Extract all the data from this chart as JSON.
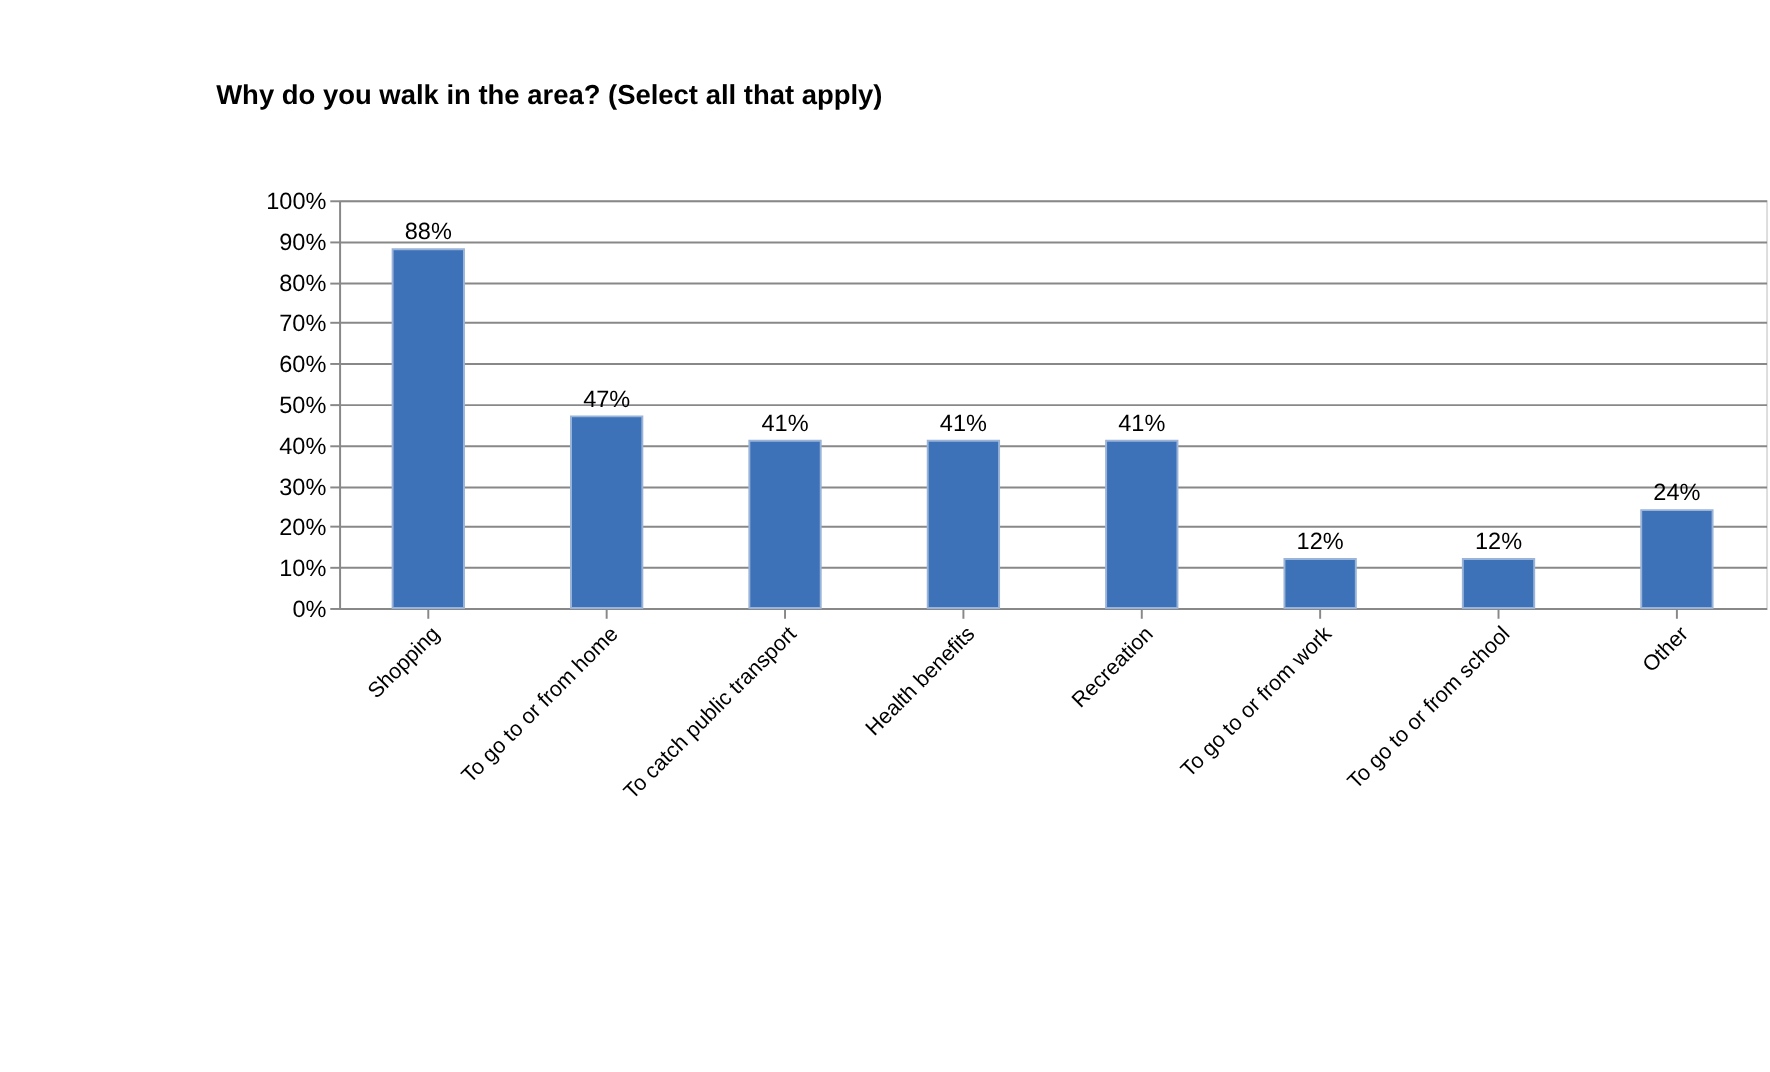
{
  "chart_data": {
    "type": "bar",
    "title": "Why do you walk in the area? (Select all that apply)",
    "categories": [
      "Shopping",
      "To go to or from home",
      "To catch public transport",
      "Health benefits",
      "Recreation",
      "To go to or from work",
      "To go to or from school",
      "Other"
    ],
    "values": [
      88,
      47,
      41,
      41,
      41,
      12,
      12,
      24
    ],
    "value_labels": [
      "88%",
      "47%",
      "41%",
      "41%",
      "41%",
      "12%",
      "12%",
      "24%"
    ],
    "color": "#3d72b8",
    "ylim": [
      0,
      100
    ],
    "yticks": [
      {
        "value": 0,
        "label": "0%"
      },
      {
        "value": 10,
        "label": "10%"
      },
      {
        "value": 20,
        "label": "20%"
      },
      {
        "value": 30,
        "label": "30%"
      },
      {
        "value": 40,
        "label": "40%"
      },
      {
        "value": 50,
        "label": "50%"
      },
      {
        "value": 60,
        "label": "60%"
      },
      {
        "value": 70,
        "label": "70%"
      },
      {
        "value": 80,
        "label": "80%"
      },
      {
        "value": 90,
        "label": "90%"
      },
      {
        "value": 100,
        "label": "100%"
      }
    ],
    "grid": "y"
  }
}
